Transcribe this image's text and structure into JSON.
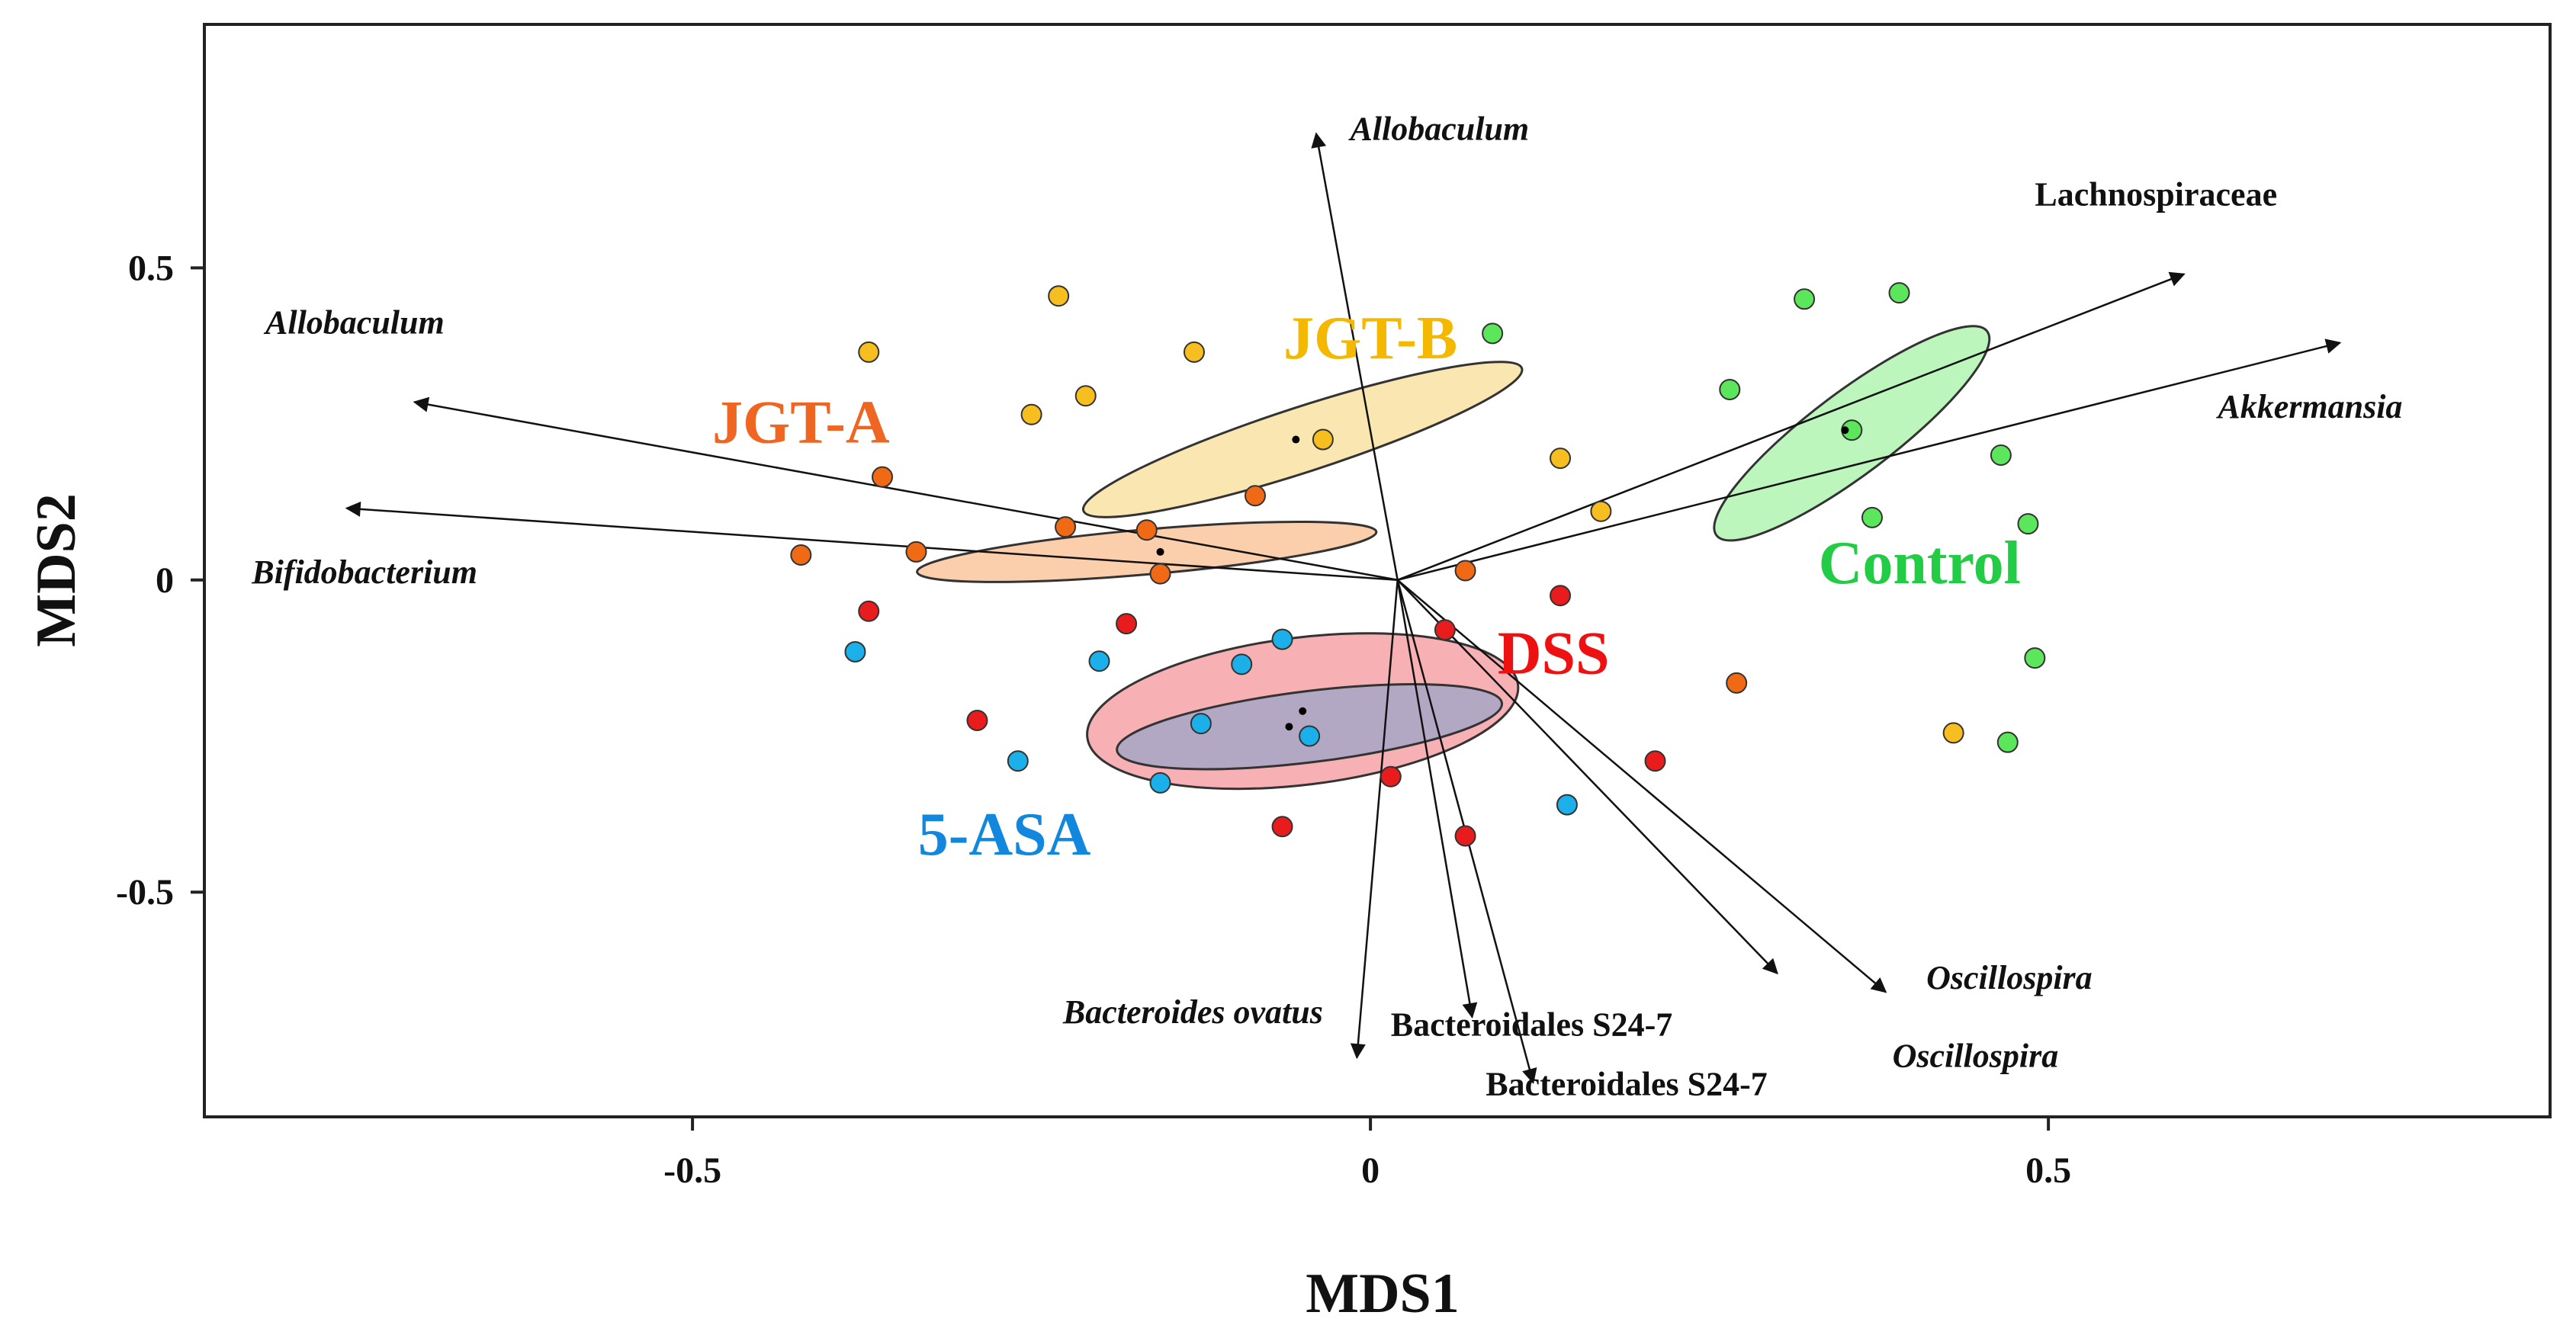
{
  "chart_data": {
    "type": "scatter",
    "title": "",
    "xlabel": "MDS1",
    "ylabel": "MDS2",
    "xlim": [
      -0.86,
      0.87
    ],
    "ylim": [
      -0.86,
      0.89
    ],
    "xticks": [
      -0.5,
      0,
      0.5
    ],
    "xtick_labels": [
      "-0.5",
      "0",
      "0.5"
    ],
    "yticks": [
      -0.5,
      0,
      0.5
    ],
    "ytick_labels": [
      "-0.5",
      "0",
      "0.5"
    ],
    "grid": false,
    "groups": [
      {
        "name": "Control",
        "color": "#22cc44",
        "fill": "#5ce65c",
        "label_pos": [
          0.405,
          -0.005
        ],
        "ellipse": {
          "cx": 0.355,
          "cy": 0.235,
          "rx": 0.125,
          "ry": 0.066,
          "angle_deg": -37,
          "fill": "#b4f5b4"
        },
        "centroid": [
          0.35,
          0.24
        ],
        "points": [
          [
            0.32,
            0.45
          ],
          [
            0.39,
            0.46
          ],
          [
            0.265,
            0.305
          ],
          [
            0.355,
            0.24
          ],
          [
            0.465,
            0.2
          ],
          [
            0.37,
            0.1
          ],
          [
            0.485,
            0.09
          ],
          [
            0.49,
            -0.125
          ],
          [
            0.47,
            -0.26
          ],
          [
            0.09,
            0.395
          ]
        ]
      },
      {
        "name": "DSS",
        "color": "#ee1111",
        "fill": "#e81c1c",
        "label_pos": [
          0.135,
          -0.15
        ],
        "ellipse": {
          "cx": -0.05,
          "cy": -0.21,
          "rx": 0.16,
          "ry": 0.118,
          "angle_deg": -7,
          "fill": "#f6a5a8"
        },
        "centroid": [
          -0.06,
          -0.235
        ],
        "points": [
          [
            -0.37,
            -0.05
          ],
          [
            -0.18,
            -0.07
          ],
          [
            0.14,
            -0.025
          ],
          [
            0.055,
            -0.08
          ],
          [
            -0.29,
            -0.225
          ],
          [
            0.21,
            -0.29
          ],
          [
            0.015,
            -0.315
          ],
          [
            -0.065,
            -0.395
          ],
          [
            0.07,
            -0.41
          ]
        ]
      },
      {
        "name": "5-ASA",
        "color": "#1188dd",
        "fill": "#1cb0ea",
        "label_pos": [
          -0.27,
          -0.44
        ],
        "ellipse": {
          "cx": -0.045,
          "cy": -0.235,
          "rx": 0.143,
          "ry": 0.057,
          "angle_deg": -7,
          "fill": "#a8a6c6"
        },
        "centroid": [
          -0.05,
          -0.21
        ],
        "points": [
          [
            -0.38,
            -0.115
          ],
          [
            -0.2,
            -0.13
          ],
          [
            -0.065,
            -0.095
          ],
          [
            -0.095,
            -0.135
          ],
          [
            -0.125,
            -0.23
          ],
          [
            -0.045,
            -0.25
          ],
          [
            -0.26,
            -0.29
          ],
          [
            -0.155,
            -0.325
          ],
          [
            0.145,
            -0.36
          ]
        ]
      },
      {
        "name": "JGT-A",
        "color": "#ee6622",
        "fill": "#f06a16",
        "label_pos": [
          -0.42,
          0.22
        ],
        "ellipse": {
          "cx": -0.165,
          "cy": 0.045,
          "rx": 0.17,
          "ry": 0.036,
          "angle_deg": -5,
          "fill": "#fbc7a0"
        },
        "centroid": [
          -0.155,
          0.045
        ],
        "points": [
          [
            -0.36,
            0.165
          ],
          [
            -0.42,
            0.04
          ],
          [
            -0.335,
            0.045
          ],
          [
            -0.225,
            0.085
          ],
          [
            -0.165,
            0.08
          ],
          [
            -0.155,
            0.01
          ],
          [
            -0.085,
            0.135
          ],
          [
            0.07,
            0.015
          ],
          [
            0.27,
            -0.165
          ]
        ]
      },
      {
        "name": "JGT-B",
        "color": "#f5b800",
        "fill": "#f7be20",
        "label_pos": [
          0.0,
          0.355
        ],
        "ellipse": {
          "cx": -0.05,
          "cy": 0.225,
          "rx": 0.17,
          "ry": 0.052,
          "angle_deg": -18,
          "fill": "#f9e3a6"
        },
        "centroid": [
          -0.055,
          0.225
        ],
        "points": [
          [
            -0.23,
            0.455
          ],
          [
            -0.37,
            0.365
          ],
          [
            -0.13,
            0.365
          ],
          [
            -0.25,
            0.265
          ],
          [
            -0.21,
            0.295
          ],
          [
            -0.035,
            0.225
          ],
          [
            0.14,
            0.195
          ],
          [
            0.17,
            0.11
          ],
          [
            0.43,
            -0.245
          ]
        ]
      }
    ],
    "arrows": [
      {
        "label": "Allobaculum",
        "italic": true,
        "tip": [
          -0.04,
          0.715
        ],
        "label_pos": [
          -0.015,
          0.705
        ],
        "anchor": "start"
      },
      {
        "label": "Lachnospiraceae",
        "italic": false,
        "tip": [
          0.6,
          0.49
        ],
        "label_pos": [
          0.49,
          0.6
        ],
        "anchor": "start"
      },
      {
        "label": "Akkermansia",
        "italic": true,
        "tip": [
          0.715,
          0.38
        ],
        "label_pos": [
          0.625,
          0.26
        ],
        "anchor": "start"
      },
      {
        "label": "Allobaculum",
        "italic": true,
        "tip": [
          -0.705,
          0.285
        ],
        "label_pos": [
          -0.815,
          0.395
        ],
        "anchor": "start"
      },
      {
        "label": "Bifidobacterium",
        "italic": true,
        "tip": [
          -0.755,
          0.115
        ],
        "label_pos": [
          -0.825,
          -0.005
        ],
        "anchor": "start"
      },
      {
        "label": "Bacteroides ovatus",
        "italic": true,
        "tip": [
          -0.01,
          -0.765
        ],
        "label_pos": [
          -0.035,
          -0.71
        ],
        "anchor": "end"
      },
      {
        "label": "Bacteroidales  S24-7",
        "italic": false,
        "tip": [
          0.075,
          -0.7
        ],
        "label_pos": [
          0.015,
          -0.73
        ],
        "anchor": "start"
      },
      {
        "label": "Bacteroidales  S24-7",
        "italic": false,
        "tip": [
          0.12,
          -0.805
        ],
        "label_pos": [
          0.085,
          -0.825
        ],
        "anchor": "start"
      },
      {
        "label": "Oscillospira",
        "italic": true,
        "tip": [
          0.3,
          -0.63
        ],
        "label_pos": [
          0.41,
          -0.655
        ],
        "anchor": "start"
      },
      {
        "label": "Oscillospira",
        "italic": true,
        "tip": [
          0.38,
          -0.66
        ],
        "label_pos": [
          0.385,
          -0.78
        ],
        "anchor": "start"
      }
    ],
    "arrow_origin": [
      0.02,
      0.0
    ]
  }
}
